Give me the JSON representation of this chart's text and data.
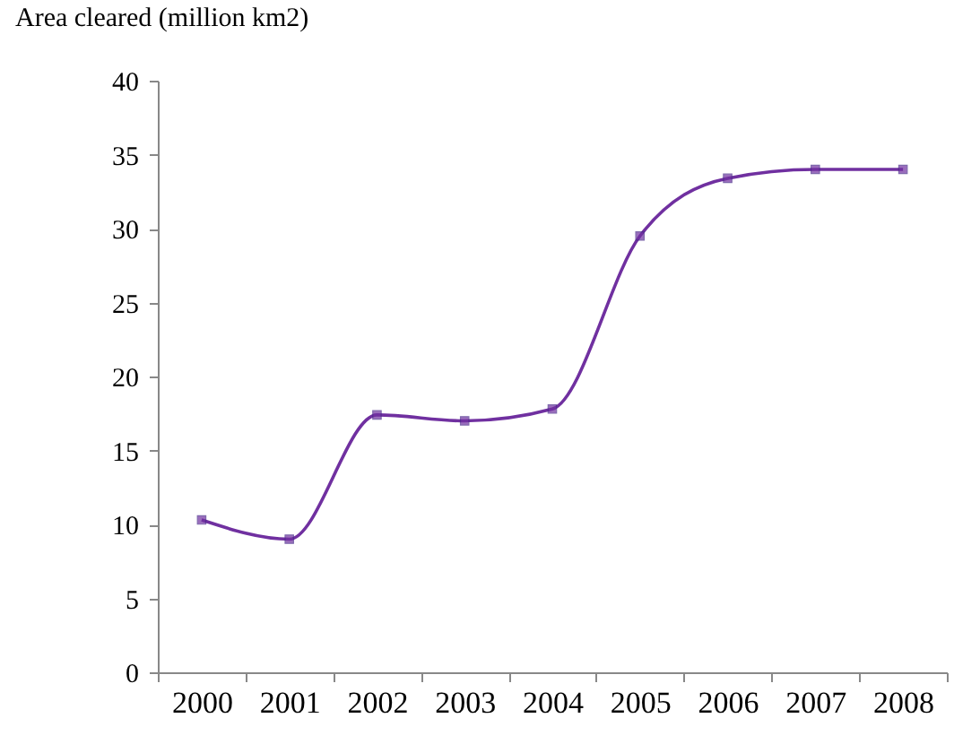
{
  "chart_data": {
    "type": "line",
    "ylabel": "Area cleared (million km2)",
    "categories": [
      "2000",
      "2001",
      "2002",
      "2003",
      "2004",
      "2005",
      "2006",
      "2007",
      "2008"
    ],
    "series": [
      {
        "color": "#7030a0",
        "values": [
          10.3,
          9.0,
          17.4,
          17.0,
          17.8,
          29.5,
          33.4,
          34.0,
          34.0
        ]
      }
    ],
    "ylim": [
      0,
      40
    ],
    "yticks": [
      0,
      5,
      10,
      15,
      20,
      25,
      30,
      35,
      40
    ],
    "grid": false,
    "marker": "square",
    "line_style": "solid"
  }
}
